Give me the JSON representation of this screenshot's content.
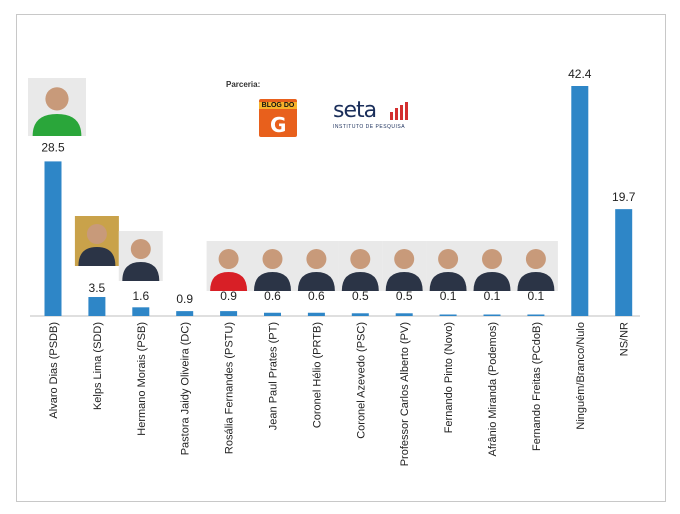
{
  "sponsor": {
    "label": "Parceria:",
    "logo1_text": "BLOG DO",
    "logo1_letter": "G",
    "logo2_text": "seta",
    "logo2_sub": "INSTITUTO DE PESQUISA"
  },
  "chart_data": {
    "type": "bar",
    "title": "",
    "xlabel": "",
    "ylabel": "",
    "ylim": [
      0,
      45
    ],
    "grid": false,
    "legend": "none",
    "bar_color": "#2e86c7",
    "categories": [
      "Alvaro Dias (PSDB)",
      "Kelps Lima (SDD)",
      "Hermano Morais (PSB)",
      "Pastora Jaidy Oliveira (DC)",
      "Rosália Fernandes (PSTU)",
      "Jean Paul Prates (PT)",
      "Coronel Hélio (PRTB)",
      "Coronel Azevedo (PSC)",
      "Professor Carlos Alberto (PV)",
      "Fernando Pinto (Novo)",
      "Afrânio Miranda (Podemos)",
      "Fernando Freitas (PCdoB)",
      "Ninguém/Branco/Nulo",
      "NS/NR"
    ],
    "values": [
      28.5,
      3.5,
      1.6,
      0.9,
      0.9,
      0.6,
      0.6,
      0.5,
      0.5,
      0.1,
      0.1,
      0.1,
      42.4,
      19.7
    ],
    "value_labels": [
      "28.5",
      "3.5",
      "1.6",
      "0.9",
      "0.9",
      "0.6",
      "0.6",
      "0.5",
      "0.5",
      "0.1",
      "0.1",
      "0.1",
      "42.4",
      "19.7"
    ],
    "photos": [
      true,
      true,
      true,
      false,
      true,
      true,
      true,
      true,
      true,
      true,
      true,
      true,
      false,
      false
    ]
  }
}
